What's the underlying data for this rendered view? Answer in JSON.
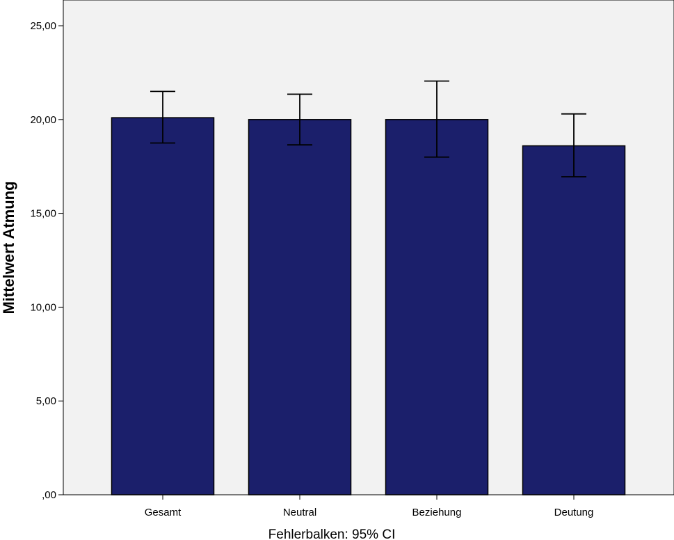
{
  "chart_data": {
    "type": "bar",
    "title": "",
    "xlabel": "",
    "ylabel": "Mittelwert  Atmung",
    "footnote": "Fehlerbalken: 95% CI",
    "categories": [
      "Gesamt",
      "Neutral",
      "Beziehung",
      "Deutung"
    ],
    "values": [
      20.1,
      20.0,
      20.0,
      18.6
    ],
    "error_low": [
      18.75,
      18.65,
      18.0,
      16.95
    ],
    "error_high": [
      21.5,
      21.35,
      22.05,
      20.3
    ],
    "ylim": [
      0,
      25.5
    ],
    "yticks": [
      0,
      5,
      10,
      15,
      20,
      25
    ],
    "ytick_labels": [
      ",00",
      "5,00",
      "10,00",
      "15,00",
      "20,00",
      "25,00"
    ],
    "grid": false,
    "legend": "none",
    "colors": {
      "bar_fill": "#1b1f6b",
      "bar_stroke": "#000000",
      "plot_background": "#f2f2f2",
      "error_bar": "#000000"
    }
  }
}
